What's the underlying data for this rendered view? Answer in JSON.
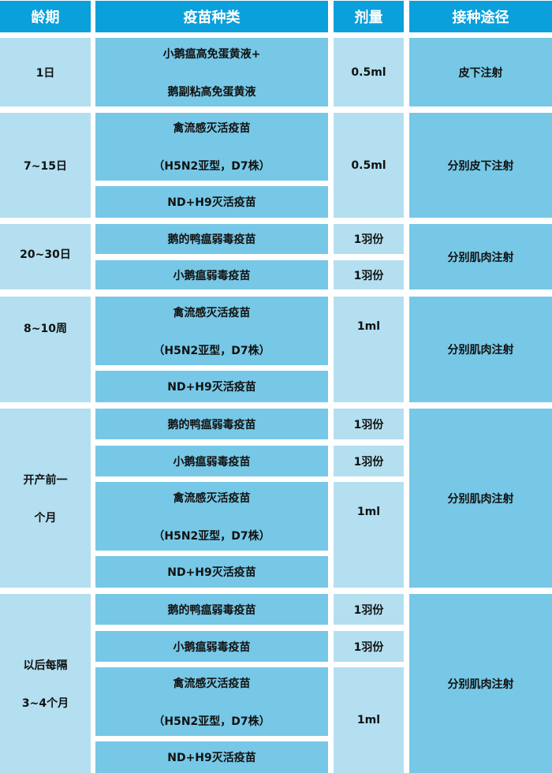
{
  "colors": {
    "header": "#0aa0db",
    "light": "#b3dff0",
    "medium": "#77c8e6"
  },
  "header": [
    "龄期",
    "疫苗种类",
    "剂量",
    "接种途径"
  ],
  "v": {
    "a": [
      "小鹅瘟高免蛋黄液+",
      "鹅副粘高免蛋黄液"
    ],
    "b": [
      "禽流感灭活疫苗",
      "（H5N2亚型，D7株）"
    ],
    "c": "ND+H9灭活疫苗",
    "d": "鹅的鸭瘟弱毒疫苗",
    "e": "小鹅瘟弱毒疫苗"
  },
  "age": [
    "1日",
    "7~15日",
    "20~30日",
    "8~10周",
    [
      "开产前一",
      "个月"
    ],
    [
      "以后每隔",
      "3~4个月"
    ]
  ],
  "dose": {
    "half": "0.5ml",
    "feather": "1羽份",
    "ml": "1ml"
  },
  "route": {
    "sub": "皮下注射",
    "sepsub": "分别皮下注射",
    "sepmus": "分别肌肉注射"
  }
}
